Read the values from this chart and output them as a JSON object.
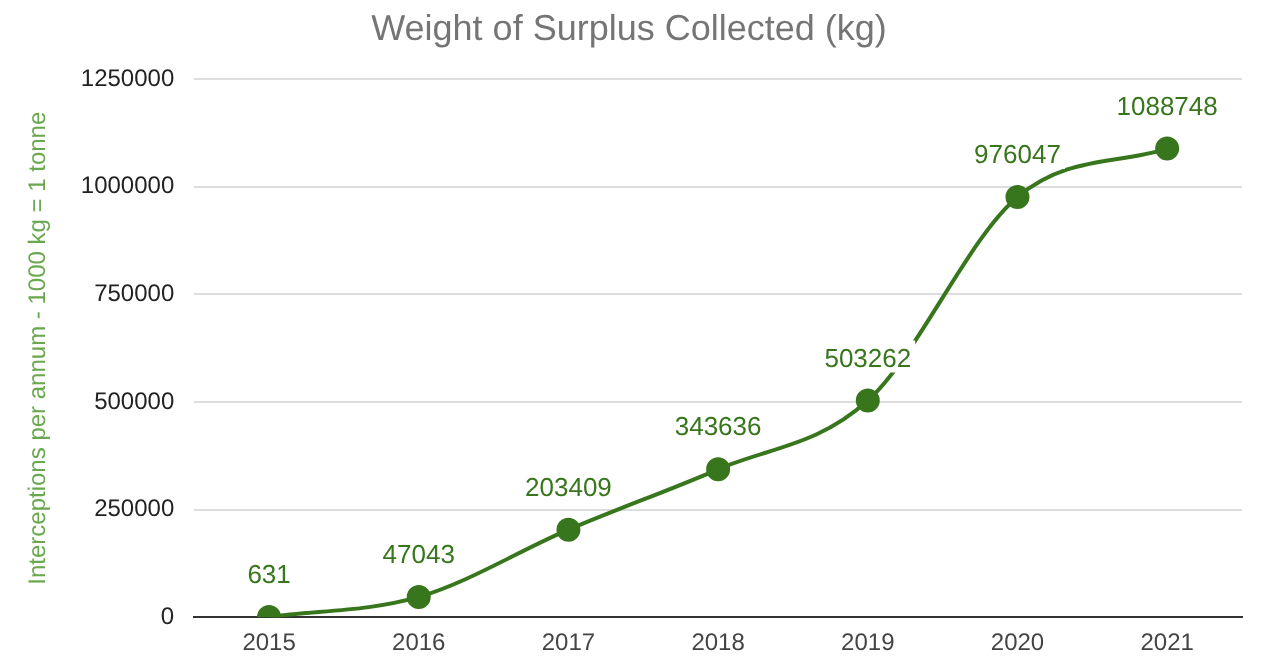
{
  "chart_data": {
    "type": "line",
    "title": "Weight of Surplus Collected (kg)",
    "ylabel": "Interceptions per annum - 1000 kg = 1 tonne",
    "categories": [
      "2015",
      "2016",
      "2017",
      "2018",
      "2019",
      "2020",
      "2021"
    ],
    "series": [
      {
        "color": "#38761d",
        "values": [
          631,
          47043,
          203409,
          343636,
          503262,
          976047,
          1088748
        ]
      }
    ],
    "ylim": [
      0,
      1250000
    ],
    "yticks": [
      0,
      250000,
      500000,
      750000,
      1000000,
      1250000
    ],
    "grid": "y",
    "legend": false,
    "marker": "circle",
    "line_style": "solid",
    "data_labels": true
  }
}
